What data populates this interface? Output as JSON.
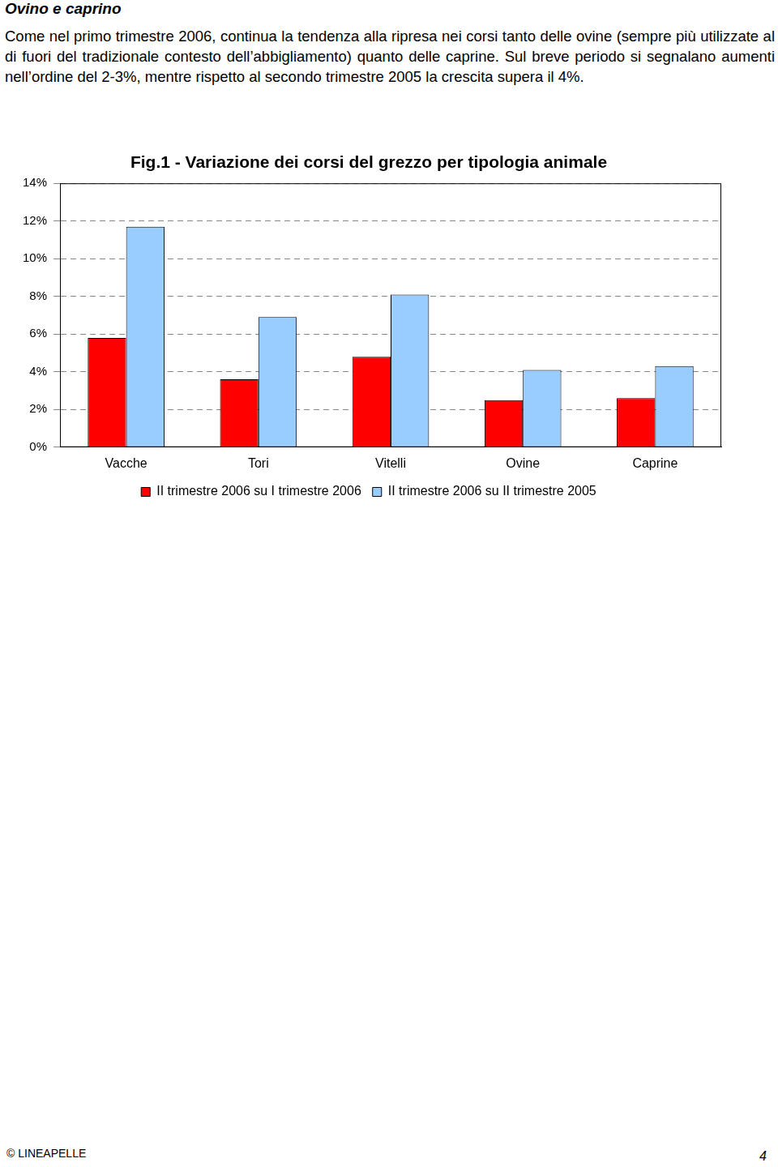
{
  "heading": "Ovino e caprino",
  "paragraph": "Come nel primo trimestre 2006, continua la tendenza alla ripresa nei corsi tanto delle ovine (sempre più utilizzate al di fuori del tradizionale contesto dell’abbigliamento) quanto delle caprine. Sul breve periodo si segnalano aumenti nell’ordine del 2-3%, mentre rispetto al secondo trimestre 2005 la crescita supera il 4%.",
  "chart_data": {
    "type": "bar",
    "title": "Fig.1 - Variazione dei corsi del grezzo per tipologia animale",
    "categories": [
      "Vacche",
      "Tori",
      "Vitelli",
      "Ovine",
      "Caprine"
    ],
    "series": [
      {
        "name": "II trimestre 2006 su I trimestre 2006",
        "color": "#ff0000",
        "values": [
          5.8,
          3.6,
          4.8,
          2.5,
          2.6
        ]
      },
      {
        "name": "II trimestre 2006 su II trimestre 2005",
        "color": "#99ccff",
        "values": [
          11.7,
          6.9,
          8.1,
          4.1,
          4.3
        ]
      }
    ],
    "ylim": [
      0,
      14
    ],
    "yticks": [
      {
        "value": 0,
        "label": "0%"
      },
      {
        "value": 2,
        "label": "2%"
      },
      {
        "value": 4,
        "label": "4%"
      },
      {
        "value": 6,
        "label": "6%"
      },
      {
        "value": 8,
        "label": "8%"
      },
      {
        "value": 10,
        "label": "10%"
      },
      {
        "value": 12,
        "label": "12%"
      },
      {
        "value": 14,
        "label": "14%"
      }
    ],
    "grid": true,
    "legend": "bottom"
  },
  "footer": {
    "left": "© LINEAPELLE",
    "page": "4"
  }
}
